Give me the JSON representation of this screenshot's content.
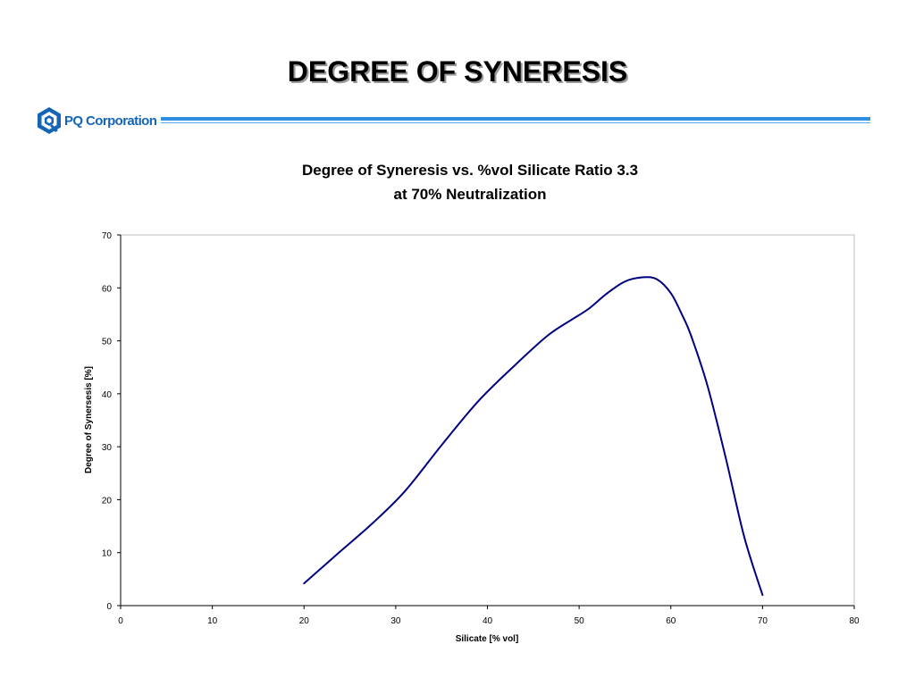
{
  "slide": {
    "title": "DEGREE OF SYNERESIS",
    "logo_text": "PQ Corporation",
    "logo_icon": "pq-hexagon-logo-icon",
    "accent_color": "#2f8fe0",
    "logo_color": "#1565b5"
  },
  "chart_data": {
    "type": "line",
    "title_line1": "Degree of Syneresis vs. %vol Silicate Ratio 3.3",
    "title_line2": "at 70% Neutralization",
    "xlabel": "Silicate [% vol]",
    "ylabel": "Degree of Synersesis [%]",
    "xlim": [
      0,
      80
    ],
    "ylim": [
      0,
      70
    ],
    "xticks": [
      0,
      10,
      20,
      30,
      40,
      50,
      60,
      70,
      80
    ],
    "yticks": [
      0,
      10,
      20,
      30,
      40,
      50,
      60,
      70
    ],
    "grid": false,
    "legend": "none",
    "line_color": "#000080",
    "series": [
      {
        "x": [
          20,
          24,
          27.5,
          31,
          35,
          39,
          43,
          46.5,
          49,
          51,
          53,
          55,
          57,
          58.5,
          60,
          61.2,
          62.2,
          64,
          66,
          68,
          70
        ],
        "y": [
          4.2,
          10.3,
          15.6,
          21.6,
          30.3,
          38.6,
          45.4,
          50.9,
          53.8,
          56,
          58.9,
          61.2,
          62,
          61.6,
          59,
          55,
          51,
          41.5,
          27.8,
          13,
          2
        ]
      }
    ]
  }
}
